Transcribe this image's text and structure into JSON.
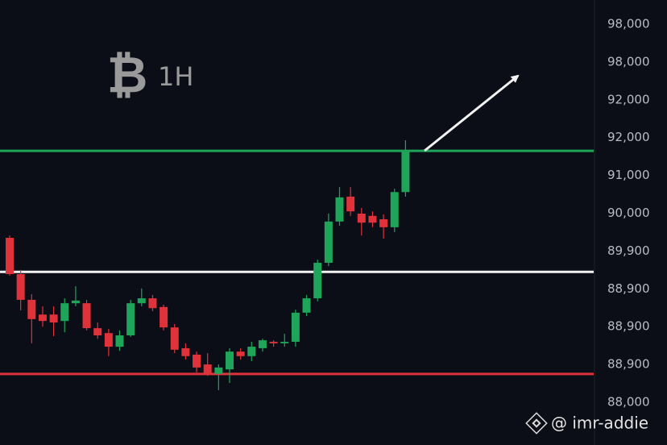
{
  "chart_data": {
    "type": "candlestick",
    "symbol": "₿",
    "title": "1H",
    "watermark": "@ imr-addie",
    "up_color": "#1fa55a",
    "down_color": "#e0323a",
    "ylim": [
      -1.13,
      10.64
    ],
    "yticks": [
      {
        "value": 0,
        "label": "88,000"
      },
      {
        "value": 1,
        "label": "88,900"
      },
      {
        "value": 2,
        "label": "88,900"
      },
      {
        "value": 3,
        "label": "88,900"
      },
      {
        "value": 4,
        "label": "89,900"
      },
      {
        "value": 5,
        "label": "90,000"
      },
      {
        "value": 6,
        "label": "91,000"
      },
      {
        "value": 7,
        "label": "92,000"
      },
      {
        "value": 8,
        "label": "92,000"
      },
      {
        "value": 9,
        "label": "98,000"
      },
      {
        "value": 10,
        "label": "98,000"
      }
    ],
    "levels": [
      {
        "value": 6.65,
        "color": "#1fa55a"
      },
      {
        "value": 3.45,
        "color": "#f2f2f2"
      },
      {
        "value": 0.75,
        "color": "#e0323a"
      }
    ],
    "open": [
      4.35,
      3.39,
      2.71,
      2.32,
      2.32,
      2.15,
      2.62,
      2.62,
      1.96,
      1.83,
      1.47,
      1.77,
      2.62,
      2.75,
      2.52,
      1.98,
      1.43,
      1.26,
      1.0,
      0.75,
      0.87,
      1.34,
      1.22,
      1.43,
      1.6,
      1.56,
      1.6,
      2.37,
      2.75,
      3.69,
      4.78,
      5.44,
      4.99,
      4.93,
      4.84,
      4.63,
      5.56
    ],
    "high": [
      4.41,
      3.5,
      2.86,
      2.54,
      2.54,
      2.75,
      3.07,
      2.71,
      2.11,
      1.94,
      1.9,
      2.71,
      3.01,
      2.84,
      2.58,
      2.07,
      1.56,
      1.34,
      1.3,
      1.0,
      1.43,
      1.43,
      1.6,
      1.68,
      1.64,
      1.81,
      2.45,
      2.84,
      3.77,
      4.99,
      5.69,
      5.69,
      5.14,
      5.05,
      4.97,
      5.65,
      6.93
    ],
    "low": [
      3.35,
      2.43,
      1.56,
      2.0,
      1.75,
      1.85,
      2.54,
      1.9,
      1.68,
      1.22,
      1.36,
      1.73,
      2.54,
      2.41,
      1.9,
      1.3,
      1.13,
      0.79,
      0.7,
      0.32,
      0.51,
      1.13,
      1.09,
      1.34,
      1.47,
      1.47,
      1.47,
      2.28,
      2.67,
      3.6,
      4.67,
      4.93,
      4.41,
      4.63,
      4.33,
      4.5,
      5.44
    ],
    "close": [
      3.39,
      2.71,
      2.2,
      2.15,
      2.11,
      2.62,
      2.69,
      1.96,
      1.77,
      1.47,
      1.77,
      2.62,
      2.75,
      2.49,
      1.98,
      1.39,
      1.22,
      0.92,
      0.75,
      0.92,
      1.34,
      1.22,
      1.47,
      1.64,
      1.56,
      1.6,
      2.37,
      2.75,
      3.69,
      4.78,
      5.42,
      5.05,
      4.75,
      4.75,
      4.63,
      5.56,
      6.65
    ]
  }
}
